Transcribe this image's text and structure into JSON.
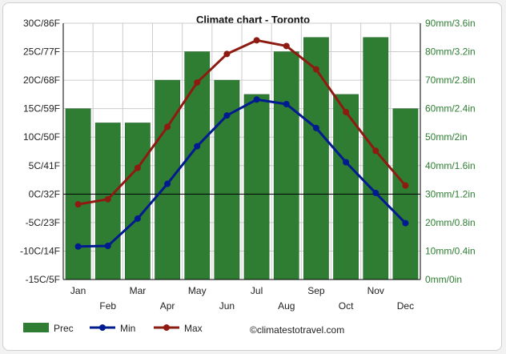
{
  "chart_data": {
    "type": "bar+line",
    "title": "Climate chart - Toronto",
    "categories": [
      "Jan",
      "Feb",
      "Mar",
      "Apr",
      "May",
      "Jun",
      "Jul",
      "Aug",
      "Sep",
      "Oct",
      "Nov",
      "Dec"
    ],
    "left_axis": {
      "range": [
        -15,
        30
      ],
      "ticks": [
        {
          "v": 30,
          "label": "30C/86F"
        },
        {
          "v": 25,
          "label": "25C/77F"
        },
        {
          "v": 20,
          "label": "20C/68F"
        },
        {
          "v": 15,
          "label": "15C/59F"
        },
        {
          "v": 10,
          "label": "10C/50F"
        },
        {
          "v": 5,
          "label": "5C/41F"
        },
        {
          "v": 0,
          "label": "0C/32F"
        },
        {
          "v": -5,
          "label": "-5C/23F"
        },
        {
          "v": -10,
          "label": "-10C/14F"
        },
        {
          "v": -15,
          "label": "-15C/5F"
        }
      ]
    },
    "right_axis": {
      "range": [
        0,
        90
      ],
      "ticks": [
        {
          "v": 90,
          "label": "90mm/3.6in"
        },
        {
          "v": 80,
          "label": "80mm/3.2in"
        },
        {
          "v": 70,
          "label": "70mm/2.8in"
        },
        {
          "v": 60,
          "label": "60mm/2.4in"
        },
        {
          "v": 50,
          "label": "50mm/2in"
        },
        {
          "v": 40,
          "label": "40mm/1.6in"
        },
        {
          "v": 30,
          "label": "30mm/1.2in"
        },
        {
          "v": 20,
          "label": "20mm/0.8in"
        },
        {
          "v": 10,
          "label": "10mm/0.4in"
        },
        {
          "v": 0,
          "label": "0mm/0in"
        }
      ]
    },
    "series": [
      {
        "name": "Prec",
        "type": "bar",
        "axis": "right",
        "color": "#2e7d32",
        "values": [
          60,
          55,
          55,
          70,
          80,
          70,
          65,
          80,
          85,
          65,
          85,
          60
        ]
      },
      {
        "name": "Min",
        "type": "line",
        "axis": "left",
        "color": "#001b8f",
        "values": [
          -9.2,
          -9.1,
          -4.3,
          1.8,
          8.4,
          13.8,
          16.6,
          15.8,
          11.6,
          5.6,
          0.2,
          -5.1
        ]
      },
      {
        "name": "Max",
        "type": "line",
        "axis": "left",
        "color": "#8e1b12",
        "values": [
          -1.8,
          -0.9,
          4.6,
          11.8,
          19.6,
          24.6,
          27.0,
          26.0,
          21.9,
          14.4,
          7.6,
          1.5
        ]
      }
    ],
    "grid": true,
    "legend": "bottom-left",
    "colors": {
      "grid": "#cccccc",
      "axis": "#000000",
      "zero_line": "#000000",
      "bar_edge": "#1b5e20",
      "right_axis_text": "#2e7d32"
    }
  },
  "legend_items": [
    {
      "label": "Prec"
    },
    {
      "label": "Min"
    },
    {
      "label": "Max"
    }
  ],
  "credit": "©climatestotravel.com"
}
